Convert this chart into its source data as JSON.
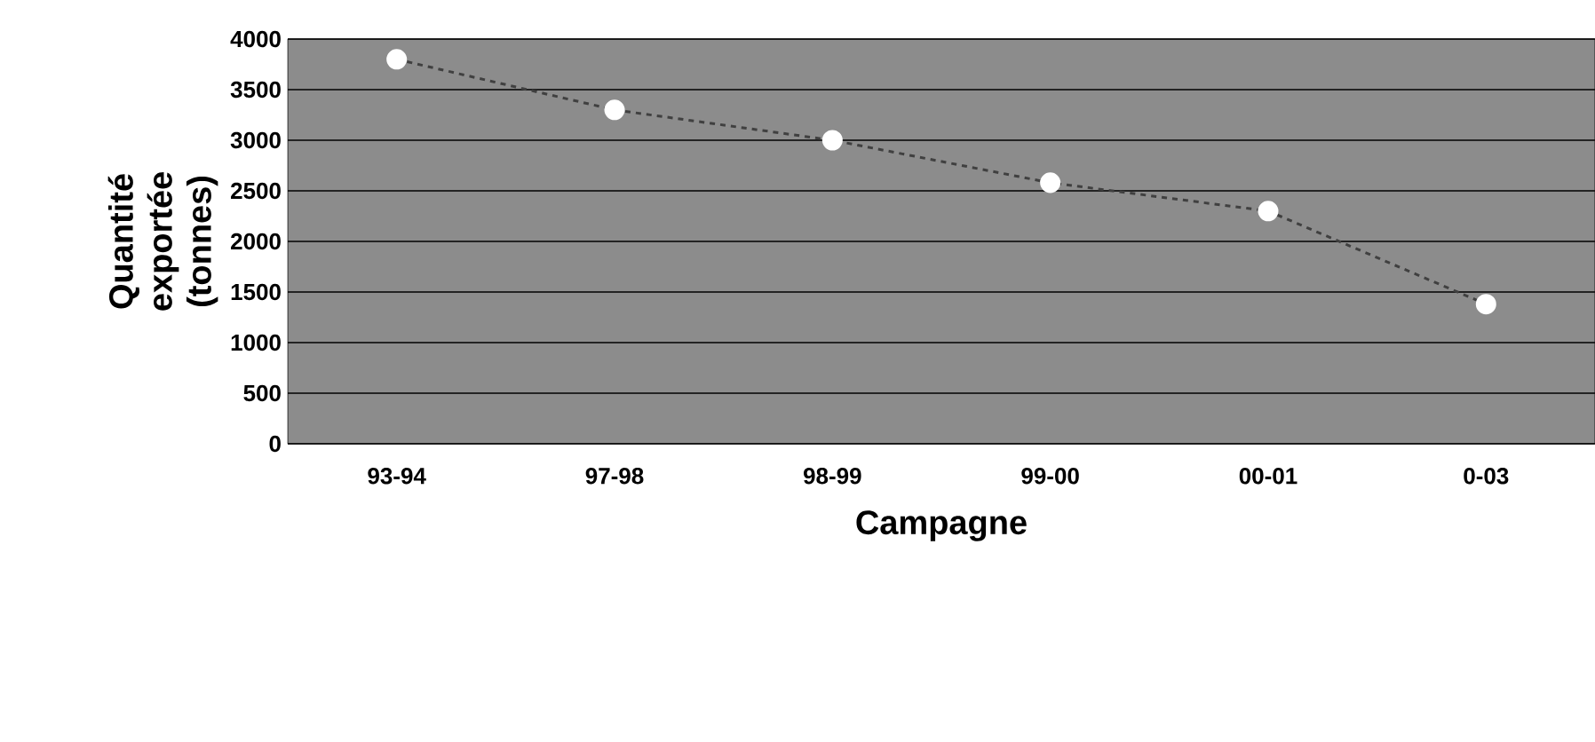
{
  "chart_data": {
    "type": "line",
    "xlabel": "Campagne",
    "ylabel": "Quantité exportée (tonnes)",
    "categories": [
      "93-94",
      "97-98",
      "98-99",
      "99-00",
      "00-01",
      "0-03"
    ],
    "values": [
      3800,
      3300,
      3000,
      2580,
      2300,
      1380
    ],
    "color": "#404040",
    "marker": "circle",
    "line_style": "dashed",
    "ylim": [
      0,
      4000
    ],
    "yticks": [
      0,
      500,
      1000,
      1500,
      2000,
      2500,
      3000,
      3500,
      4000
    ],
    "grid": "y"
  }
}
